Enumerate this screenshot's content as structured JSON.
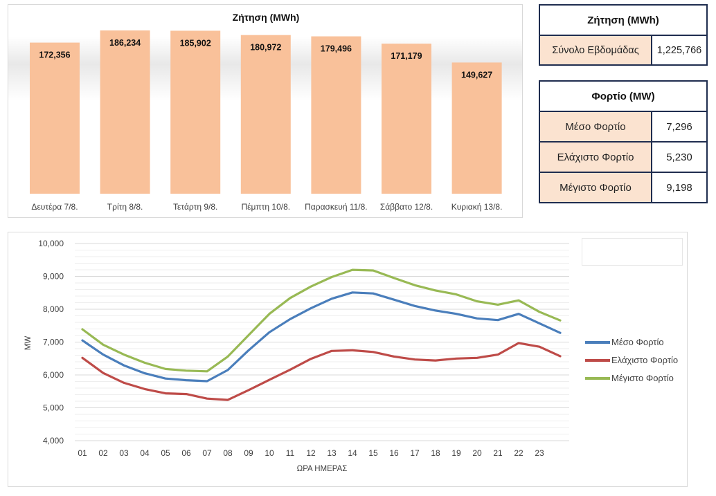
{
  "demand_chart": {
    "chart_data": {
      "type": "bar",
      "title": "Ζήτηση (MWh)",
      "categories": [
        "Δευτέρα 7/8.",
        "Τρίτη 8/8.",
        "Τετάρτη 9/8.",
        "Πέμπτη 10/8.",
        "Παρασκευή 11/8.",
        "Σάββατο 12/8.",
        "Κυριακή 13/8."
      ],
      "values": [
        172356,
        186234,
        185902,
        180972,
        179496,
        171179,
        149627
      ],
      "value_labels": [
        "172,356",
        "186,234",
        "185,902",
        "180,972",
        "179,496",
        "171,179",
        "149,627"
      ],
      "bar_color": "#f9c19a"
    }
  },
  "demand_table": {
    "header": "Ζήτηση (MWh)",
    "label": "Σύνολο Εβδομάδας",
    "value": "1,225,766"
  },
  "load_table": {
    "header": "Φορτίο (MW)",
    "rows": [
      {
        "label": "Μέσο Φορτίο",
        "value": "7,296"
      },
      {
        "label": "Ελάχιστο Φορτίο",
        "value": "5,230"
      },
      {
        "label": "Μέγιστο Φορτίο",
        "value": "9,198"
      }
    ]
  },
  "load_chart": {
    "chart_data": {
      "type": "line",
      "xlabel": "ΩΡΑ ΗΜΕΡΑΣ",
      "ylabel": "MW",
      "ylim": [
        4000,
        10000
      ],
      "y_ticks": [
        "4,000",
        "5,000",
        "6,000",
        "7,000",
        "8,000",
        "9,000",
        "10,000"
      ],
      "x": [
        "01",
        "02",
        "03",
        "04",
        "05",
        "06",
        "07",
        "08",
        "09",
        "10",
        "11",
        "12",
        "13",
        "14",
        "15",
        "16",
        "17",
        "18",
        "19",
        "20",
        "21",
        "22",
        "23",
        "24"
      ],
      "x_tick_labels": [
        "01",
        "02",
        "03",
        "04",
        "05",
        "06",
        "07",
        "08",
        "09",
        "10",
        "11",
        "12",
        "13",
        "14",
        "15",
        "16",
        "17",
        "18",
        "19",
        "20",
        "21",
        "22",
        "23",
        ""
      ],
      "grid": true,
      "legend_position": "right",
      "series": [
        {
          "name": "Μέσο Φορτίο",
          "color": "#4a7ebb",
          "values": [
            7050,
            6620,
            6290,
            6050,
            5890,
            5840,
            5810,
            6150,
            6750,
            7300,
            7700,
            8030,
            8320,
            8510,
            8480,
            8290,
            8100,
            7960,
            7860,
            7720,
            7670,
            7860,
            7570,
            7280
          ]
        },
        {
          "name": "Ελάχιστο Φορτίο",
          "color": "#be4b48",
          "values": [
            6520,
            6060,
            5760,
            5570,
            5440,
            5420,
            5280,
            5240,
            5540,
            5850,
            6160,
            6490,
            6730,
            6750,
            6700,
            6560,
            6470,
            6440,
            6500,
            6520,
            6620,
            6970,
            6860,
            6570
          ]
        },
        {
          "name": "Μέγιστο Φορτίο",
          "color": "#98b954",
          "values": [
            7390,
            6920,
            6620,
            6370,
            6180,
            6130,
            6110,
            6560,
            7210,
            7860,
            8340,
            8690,
            8980,
            9198,
            9180,
            8950,
            8730,
            8570,
            8450,
            8240,
            8140,
            8270,
            7920,
            7660
          ]
        }
      ]
    }
  }
}
